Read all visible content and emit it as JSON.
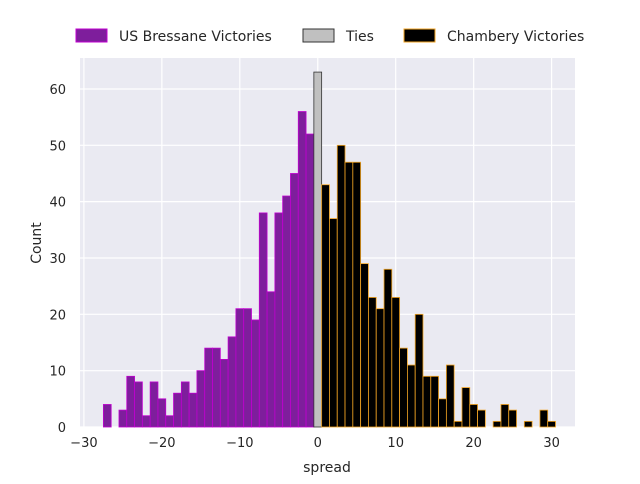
{
  "chart_data": {
    "type": "bar",
    "xlabel": "spread",
    "ylabel": "Count",
    "xlim": [
      -30.5,
      33
    ],
    "ylim": [
      0,
      65.5
    ],
    "xticks": [
      -30,
      -20,
      -10,
      0,
      10,
      20,
      30
    ],
    "xtick_labels": [
      "−30",
      "−20",
      "−10",
      "0",
      "10",
      "20",
      "30"
    ],
    "yticks": [
      0,
      10,
      20,
      30,
      40,
      50,
      60
    ],
    "ytick_labels": [
      "0",
      "10",
      "20",
      "30",
      "40",
      "50",
      "60"
    ],
    "grid": true,
    "legend_position": "top",
    "bin_width": 1,
    "series": [
      {
        "name": "US Bressane Victories",
        "fill": "#7e1e9c",
        "edge": "#c000d0",
        "bins": [
          {
            "x": -27,
            "count": 4
          },
          {
            "x": -25,
            "count": 3
          },
          {
            "x": -24,
            "count": 9
          },
          {
            "x": -23,
            "count": 8
          },
          {
            "x": -22,
            "count": 2
          },
          {
            "x": -21,
            "count": 8
          },
          {
            "x": -20,
            "count": 5
          },
          {
            "x": -19,
            "count": 2
          },
          {
            "x": -18,
            "count": 6
          },
          {
            "x": -17,
            "count": 8
          },
          {
            "x": -16,
            "count": 6
          },
          {
            "x": -15,
            "count": 10
          },
          {
            "x": -14,
            "count": 14
          },
          {
            "x": -13,
            "count": 14
          },
          {
            "x": -12,
            "count": 12
          },
          {
            "x": -11,
            "count": 16
          },
          {
            "x": -10,
            "count": 21
          },
          {
            "x": -9,
            "count": 21
          },
          {
            "x": -8,
            "count": 19
          },
          {
            "x": -7,
            "count": 38
          },
          {
            "x": -6,
            "count": 24
          },
          {
            "x": -5,
            "count": 38
          },
          {
            "x": -4,
            "count": 41
          },
          {
            "x": -3,
            "count": 45
          },
          {
            "x": -2,
            "count": 56
          },
          {
            "x": -1,
            "count": 52
          }
        ]
      },
      {
        "name": "Ties",
        "fill": "#c0c0c0",
        "edge": "#333333",
        "bins": [
          {
            "x": 0,
            "count": 63
          }
        ]
      },
      {
        "name": "Chambery Victories",
        "fill": "#000000",
        "edge": "#f5a623",
        "bins": [
          {
            "x": 1,
            "count": 43
          },
          {
            "x": 2,
            "count": 37
          },
          {
            "x": 3,
            "count": 50
          },
          {
            "x": 4,
            "count": 47
          },
          {
            "x": 5,
            "count": 47
          },
          {
            "x": 6,
            "count": 29
          },
          {
            "x": 7,
            "count": 23
          },
          {
            "x": 8,
            "count": 21
          },
          {
            "x": 9,
            "count": 28
          },
          {
            "x": 10,
            "count": 23
          },
          {
            "x": 11,
            "count": 14
          },
          {
            "x": 12,
            "count": 11
          },
          {
            "x": 13,
            "count": 20
          },
          {
            "x": 14,
            "count": 9
          },
          {
            "x": 15,
            "count": 9
          },
          {
            "x": 16,
            "count": 5
          },
          {
            "x": 17,
            "count": 11
          },
          {
            "x": 18,
            "count": 1
          },
          {
            "x": 19,
            "count": 7
          },
          {
            "x": 20,
            "count": 4
          },
          {
            "x": 21,
            "count": 3
          },
          {
            "x": 23,
            "count": 1
          },
          {
            "x": 24,
            "count": 4
          },
          {
            "x": 25,
            "count": 3
          },
          {
            "x": 27,
            "count": 1
          },
          {
            "x": 29,
            "count": 3
          },
          {
            "x": 30,
            "count": 1
          }
        ]
      }
    ]
  },
  "colors": {
    "plot_background": "#eaeaf2",
    "grid": "#ffffff",
    "text": "#262626"
  }
}
